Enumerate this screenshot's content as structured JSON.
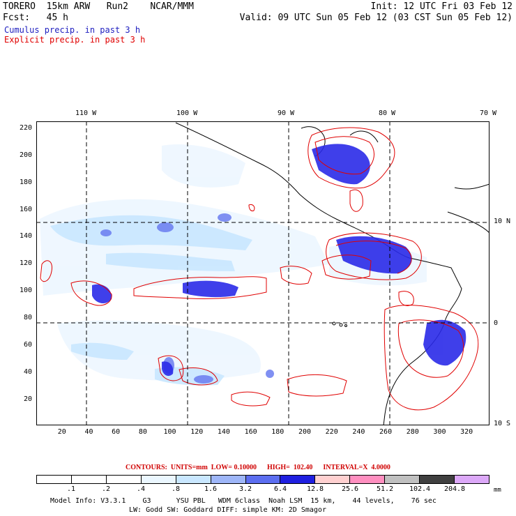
{
  "header": {
    "model": "TORERO  15km ARW   Run2    NCAR/MMM",
    "init": "Init: 12 UTC Fri 03 Feb 12",
    "fcst": "Fcst:   45 h",
    "valid": "Valid: 09 UTC Sun 05 Feb 12 (03 CST Sun 05 Feb 12)",
    "cumulus": "Cumulus precip. in past 3 h",
    "explicit": "Explicit precip. in past 3 h"
  },
  "map": {
    "lon_labels": [
      "110 W",
      "100 W",
      "90 W",
      "80 W",
      "70 W"
    ],
    "lat_labels": [
      "10 N",
      "0",
      "10 S"
    ],
    "x_ticks": [
      "20",
      "40",
      "60",
      "80",
      "100",
      "120",
      "140",
      "160",
      "180",
      "200",
      "220",
      "240",
      "260",
      "280",
      "300",
      "320"
    ],
    "y_ticks": [
      "220",
      "200",
      "180",
      "160",
      "140",
      "120",
      "100",
      "80",
      "60",
      "40",
      "20"
    ],
    "x_range": [
      1,
      337
    ],
    "y_range": [
      1,
      225
    ]
  },
  "contours": {
    "line": "CONTOURS:  UNITS=mm  LOW= 0.10000      HIGH=  102.40      INTERVAL=X  4.0000"
  },
  "colorbar": {
    "levels": [
      ".1",
      ".2",
      ".4",
      ".8",
      "1.6",
      "3.2",
      "6.4",
      "12.8",
      "25.6",
      "51.2",
      "102.4",
      "204.8"
    ],
    "colors": [
      "#ffffff",
      "#ffffff",
      "#ffffff",
      "#ebf7ff",
      "#c9e7ff",
      "#9eb6f8",
      "#5c6ef0",
      "#1f1fe0",
      "#ffd0d0",
      "#ff8fc0",
      "#c0c0c0",
      "#404040",
      "#dca8f8"
    ],
    "unit": "mm"
  },
  "model_info": {
    "line1": "Model Info: V3.3.1    G3      YSU PBL   WDM 6class  Noah LSM  15 km,    44 levels,    76 sec",
    "line2": "LW: Godd SW: Goddard DIFF: simple KM: 2D Smagor"
  }
}
